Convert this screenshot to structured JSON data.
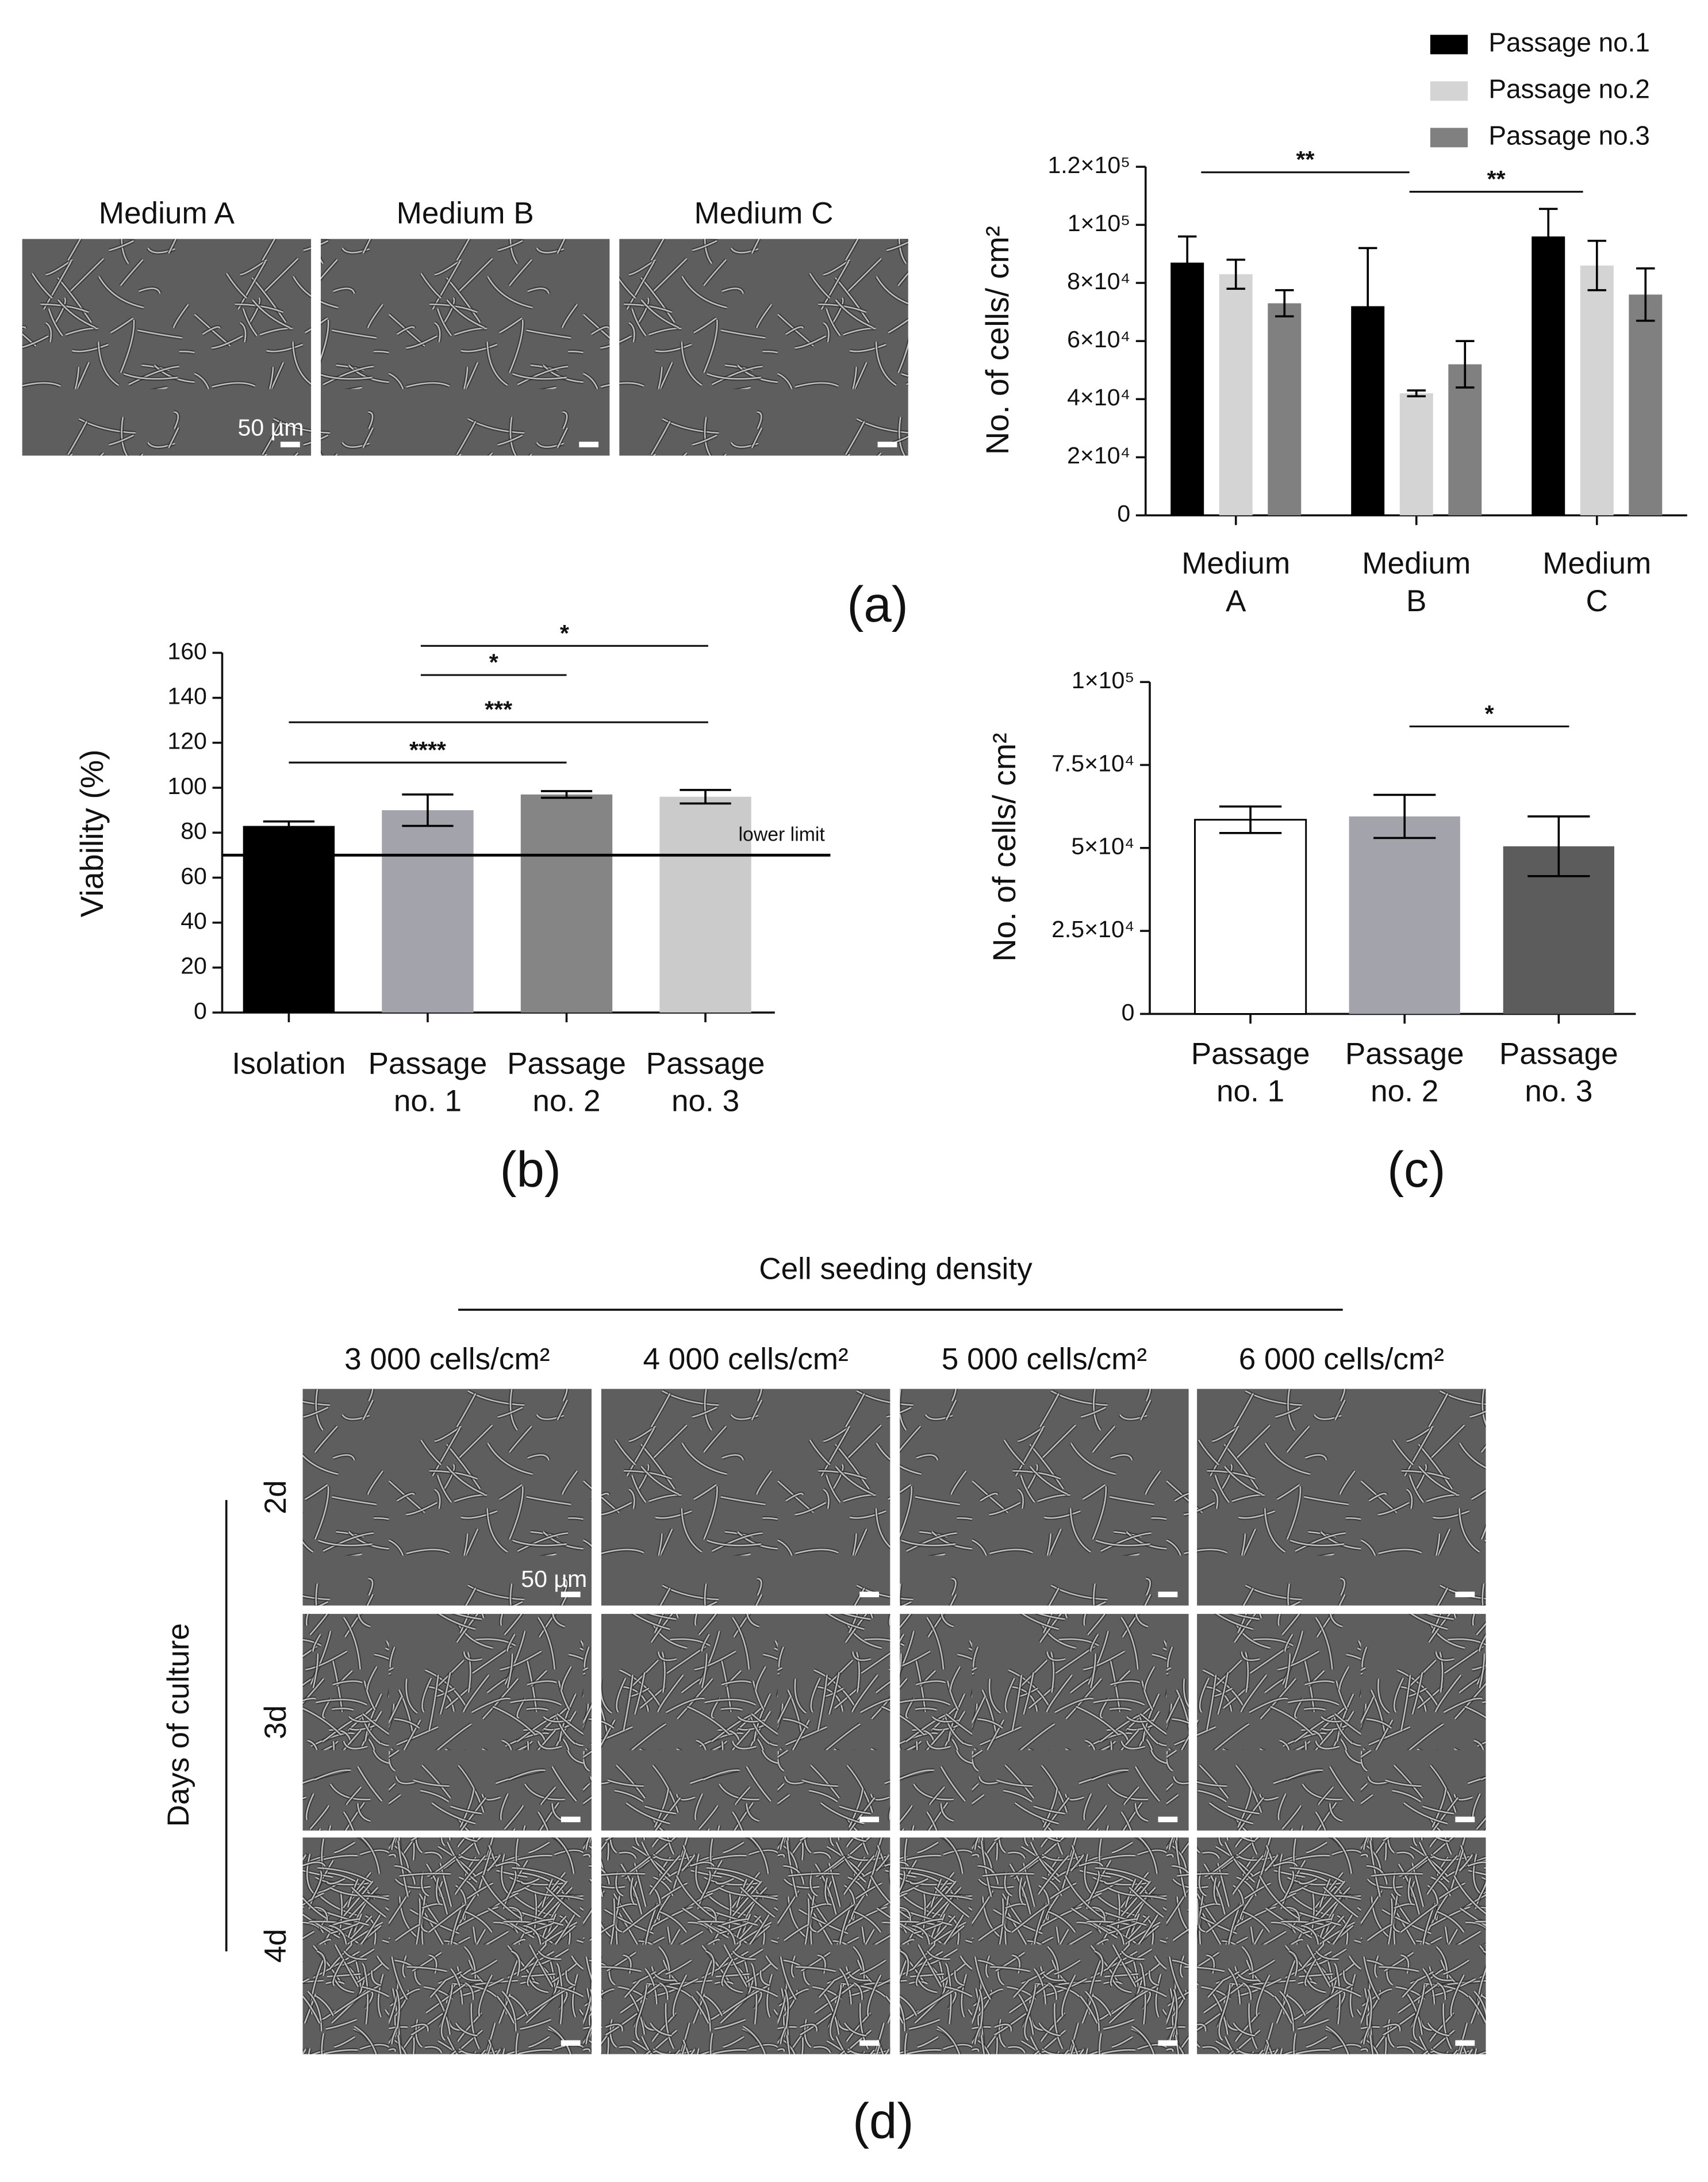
{
  "chart_data": [
    {
      "type": "bar",
      "ylabel": "No. of cells/ cm²",
      "categories": [
        "Medium A",
        "Medium B",
        "Medium C"
      ],
      "series": [
        {
          "name": "Passage no.1",
          "color": "#000000",
          "values": [
            87000,
            72000,
            96000
          ],
          "errors": [
            9000,
            20000,
            9500
          ]
        },
        {
          "name": "Passage no.2",
          "color": "#d4d4d4",
          "values": [
            83000,
            42000,
            86000
          ],
          "errors": [
            5000,
            1000,
            8500
          ]
        },
        {
          "name": "Passage no.3",
          "color": "#808080",
          "values": [
            73000,
            52000,
            76000
          ],
          "errors": [
            4500,
            8000,
            9000
          ]
        }
      ],
      "ylim": [
        0,
        120000
      ],
      "yticks": [
        0,
        {
          "value": 20000,
          "label": "2×10⁴"
        },
        {
          "value": 40000,
          "label": "4×10⁴"
        },
        {
          "value": 60000,
          "label": "6×10⁴"
        },
        {
          "value": 80000,
          "label": "8×10⁴"
        },
        {
          "value": 100000,
          "label": "1×10⁵"
        },
        {
          "value": 120000,
          "label": "1.2×10⁵"
        }
      ],
      "annotations": [
        "**",
        "**"
      ],
      "legend": "top-right"
    },
    {
      "type": "bar",
      "ylabel": "Viability (%)",
      "categories": [
        "Isolation",
        "Passage no. 1",
        "Passage no. 2",
        "Passage no. 3"
      ],
      "values": [
        83,
        90,
        97,
        96
      ],
      "errors": [
        2,
        7,
        1.5,
        3
      ],
      "colors": [
        "#000000",
        "#a3a3ab",
        "#858585",
        "#cbcbcb"
      ],
      "ylim": [
        0,
        160
      ],
      "yticks": [
        0,
        20,
        40,
        60,
        80,
        100,
        120,
        140,
        160
      ],
      "hline": {
        "value": 70,
        "label": "lower limit"
      },
      "annotations": [
        "*",
        "*",
        "***",
        "****"
      ]
    },
    {
      "type": "bar",
      "ylabel": "No. of cells/ cm²",
      "categories": [
        "Passage no. 1",
        "Passage no. 2",
        "Passage no. 3"
      ],
      "values": [
        58500,
        59500,
        50500
      ],
      "errors": [
        4000,
        6500,
        9000
      ],
      "colors": [
        "#ffffff",
        "#a3a3ab",
        "#5c5c5c"
      ],
      "ylim": [
        0,
        100000
      ],
      "yticks": [
        0,
        {
          "value": 25000,
          "label": "2.5×10⁴"
        },
        {
          "value": 50000,
          "label": "5×10⁴"
        },
        {
          "value": 75000,
          "label": "7.5×10⁴"
        },
        {
          "value": 100000,
          "label": "1×10⁵"
        }
      ],
      "annotations": [
        "*"
      ]
    }
  ],
  "micrographs_a": {
    "titles": [
      "Medium A",
      "Medium B",
      "Medium C"
    ],
    "scale_bar": "50 µm"
  },
  "panel_d": {
    "title": "Cell seeding density",
    "columns": [
      "3 000 cells/cm²",
      "4 000 cells/cm²",
      "5 000 cells/cm²",
      "6 000 cells/cm²"
    ],
    "rows": [
      "2d",
      "3d",
      "4d"
    ],
    "row_axis": "Days of culture",
    "scale_bar": "50 µm"
  },
  "panel_labels": [
    "(a)",
    "(b)",
    "(c)",
    "(d)"
  ]
}
